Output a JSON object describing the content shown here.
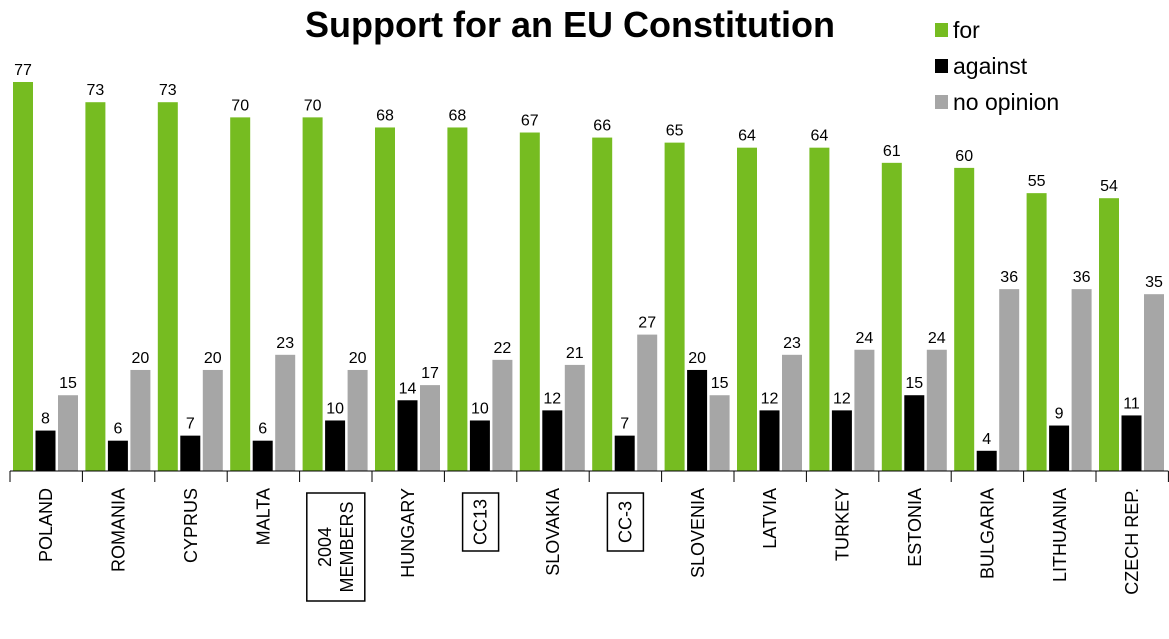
{
  "chart_data": {
    "type": "bar",
    "title": "Support for an EU Constitution",
    "categories": [
      "POLAND",
      "ROMANIA",
      "CYPRUS",
      "MALTA",
      "2004 MEMBERS",
      "HUNGARY",
      "CC13",
      "SLOVAKIA",
      "CC-3",
      "SLOVENIA",
      "LATVIA",
      "TURKEY",
      "ESTONIA",
      "BULGARIA",
      "LITHUANIA",
      "CZECH REP."
    ],
    "boxed_categories": [
      "2004 MEMBERS",
      "CC13",
      "CC-3"
    ],
    "series": [
      {
        "name": "for",
        "color": "#76bc21",
        "values": [
          77,
          73,
          73,
          70,
          70,
          68,
          68,
          67,
          66,
          65,
          64,
          64,
          61,
          60,
          55,
          54
        ]
      },
      {
        "name": "against",
        "color": "#000000",
        "values": [
          8,
          6,
          7,
          6,
          10,
          14,
          10,
          12,
          7,
          20,
          12,
          12,
          15,
          4,
          9,
          11
        ]
      },
      {
        "name": "no opinion",
        "color": "#a6a6a6",
        "values": [
          15,
          20,
          20,
          23,
          20,
          17,
          22,
          21,
          27,
          15,
          23,
          24,
          24,
          36,
          36,
          35
        ]
      }
    ],
    "ylim": [
      0,
      77
    ],
    "grid": false,
    "legend_position": "top-right",
    "data_labels": true
  }
}
